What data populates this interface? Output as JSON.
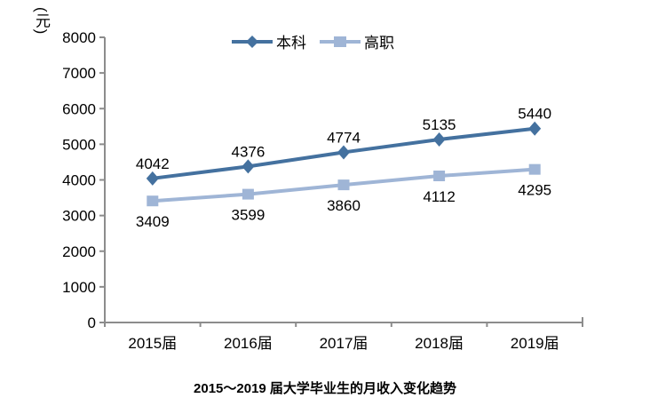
{
  "chart_data": {
    "type": "line",
    "title": "2015～2019 届大学毕业生的月收入变化趋势",
    "y_unit": "(元)",
    "categories": [
      "2015届",
      "2016届",
      "2017届",
      "2018届",
      "2019届"
    ],
    "series": [
      {
        "name": "本科",
        "marker": "diamond",
        "color": "#44719F",
        "values": [
          4042,
          4376,
          4774,
          5135,
          5440
        ],
        "label_position": "above"
      },
      {
        "name": "高职",
        "marker": "square",
        "color": "#9FB5D6",
        "values": [
          3409,
          3599,
          3860,
          4112,
          4295
        ],
        "label_position": "below"
      }
    ],
    "ylim": [
      0,
      8000
    ],
    "y_tick_step": 1000,
    "y_tick_labels": [
      "0",
      "1000",
      "2000",
      "3000",
      "4000",
      "5000",
      "6000",
      "7000",
      "8000"
    ],
    "legend_position": "top-center",
    "grid": false
  },
  "colors": {
    "axis": "#8C8C8C",
    "text": "#000000",
    "background": "#FFFFFF"
  }
}
